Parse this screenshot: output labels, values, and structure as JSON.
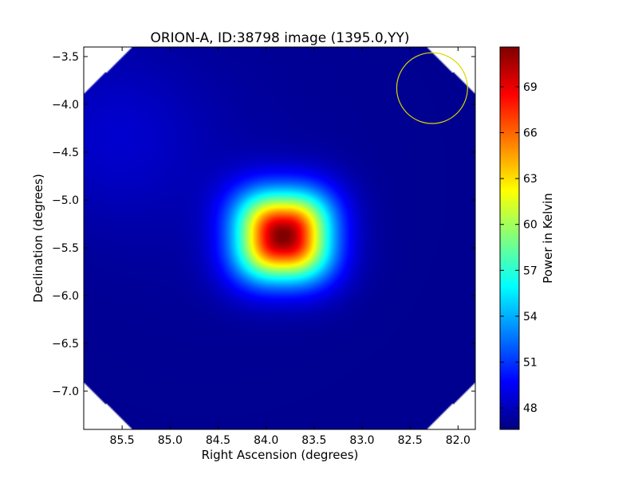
{
  "chart_data": {
    "type": "heatmap",
    "title": "ORION-A, ID:38798 image (1395.0,YY)",
    "xlabel": "Right Ascension (degrees)",
    "ylabel": "Declination (degrees)",
    "xlim": [
      85.9,
      81.82
    ],
    "ylim": [
      -7.4,
      -3.4
    ],
    "xticks": [
      85.5,
      85.0,
      84.5,
      84.0,
      83.5,
      83.0,
      82.5,
      82.0
    ],
    "xtick_labels": [
      "85.5",
      "85.0",
      "84.5",
      "84.0",
      "83.5",
      "83.0",
      "82.5",
      "82.0"
    ],
    "yticks": [
      -3.5,
      -4.0,
      -4.5,
      -5.0,
      -5.5,
      -6.0,
      -6.5,
      -7.0
    ],
    "ytick_labels": [
      "−3.5",
      "−4.0",
      "−4.5",
      "−5.0",
      "−5.5",
      "−6.0",
      "−6.5",
      "−7.0"
    ],
    "colormap": "jet",
    "colorbar": {
      "label": "Power in Kelvin",
      "vmin": 46.6,
      "vmax": 71.6,
      "ticks": [
        48,
        51,
        54,
        57,
        60,
        63,
        66,
        69
      ],
      "tick_labels": [
        "48",
        "51",
        "54",
        "57",
        "60",
        "63",
        "66",
        "69"
      ]
    },
    "source_peak": {
      "ra": 83.82,
      "dec": -5.38,
      "value": 71.5
    },
    "background_value": 47.0,
    "beam_circle": {
      "ra": 82.27,
      "dec": -3.83,
      "radius_deg": 0.37,
      "color": "#d8d800"
    }
  }
}
